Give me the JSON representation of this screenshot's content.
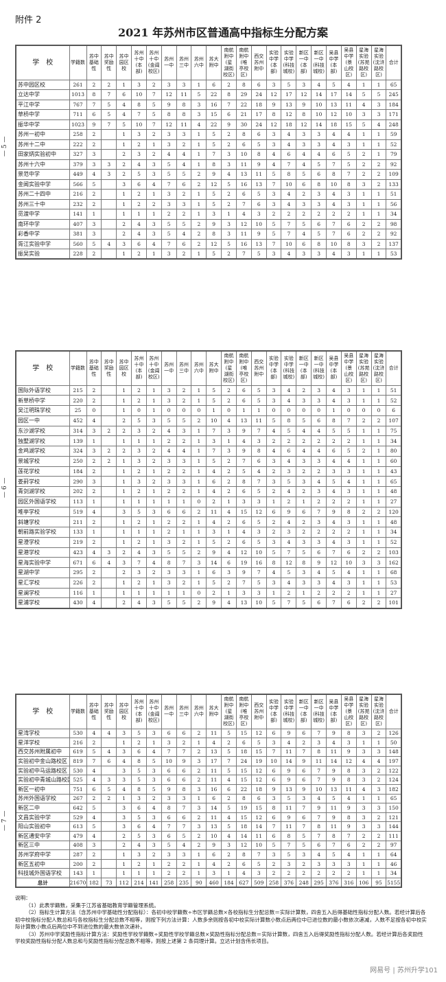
{
  "attachment_label": "附件 2",
  "title": "2021 年苏州市区普通高中指标生分配方案",
  "page_markers": [
    "— 5 —",
    "— 6 —",
    "— 7 —"
  ],
  "headers": [
    "学　校",
    "学籍数",
    "苏中\n基础\n性",
    "苏中\n奖励\n性",
    "苏中\n园区\n校",
    "苏州\n十中\n(本\n部)",
    "苏州\n十中\n(金阊\n校区)",
    "苏州\n一中",
    "苏州\n三中",
    "苏州\n六中",
    "苏大\n附中",
    "南航\n附中\n(星\n湖街\n校区)",
    "南航\n附中\n(唯\n亭校\n区)",
    "西交\n苏州\n附中",
    "实验\n中学\n(本\n部)",
    "实验\n中学\n(科技\n城校)",
    "新区\n一中\n(本\n部)",
    "新区\n一中\n(科技\n城校)",
    "吴县\n中学\n(本\n部)",
    "吴县\n中学\n(景\n山校\n区)",
    "星海\n实验\n(苏苑\n路校\n区)",
    "星海\n实验\n(沈浒\n路校\n区)",
    "合计"
  ],
  "tables": [
    [
      [
        "苏中园区校",
        "261",
        "2",
        "2",
        "1",
        "3",
        "2",
        "3",
        "3",
        "1",
        "6",
        "2",
        "8",
        "6",
        "3",
        "5",
        "3",
        "4",
        "5",
        "4",
        "1",
        "1",
        "65"
      ],
      [
        "立达中学",
        "1013",
        "8",
        "7",
        "6",
        "10",
        "7",
        "12",
        "11",
        "5",
        "22",
        "8",
        "29",
        "24",
        "12",
        "17",
        "12",
        "14",
        "17",
        "14",
        "5",
        "5",
        "245"
      ],
      [
        "平江中学",
        "767",
        "7",
        "5",
        "4",
        "8",
        "5",
        "9",
        "8",
        "3",
        "16",
        "7",
        "22",
        "18",
        "9",
        "13",
        "9",
        "10",
        "13",
        "11",
        "4",
        "3",
        "184"
      ],
      [
        "草桥中学",
        "711",
        "6",
        "5",
        "4",
        "7",
        "5",
        "8",
        "8",
        "3",
        "15",
        "6",
        "21",
        "17",
        "8",
        "12",
        "8",
        "10",
        "12",
        "10",
        "3",
        "3",
        "171"
      ],
      [
        "振华中学",
        "1023",
        "9",
        "7",
        "5",
        "10",
        "7",
        "12",
        "11",
        "4",
        "22",
        "9",
        "30",
        "24",
        "12",
        "18",
        "12",
        "14",
        "18",
        "15",
        "5",
        "4",
        "248"
      ],
      [
        "苏州一初中",
        "258",
        "2",
        "",
        "1",
        "3",
        "2",
        "3",
        "3",
        "1",
        "5",
        "2",
        "8",
        "6",
        "3",
        "4",
        "3",
        "3",
        "4",
        "4",
        "1",
        "1",
        "59"
      ],
      [
        "苏州十二中",
        "222",
        "2",
        "",
        "1",
        "2",
        "1",
        "3",
        "2",
        "1",
        "5",
        "2",
        "6",
        "5",
        "3",
        "4",
        "3",
        "3",
        "4",
        "3",
        "1",
        "1",
        "52"
      ],
      [
        "田家炳实验初中",
        "327",
        "3",
        "",
        "2",
        "3",
        "2",
        "4",
        "4",
        "1",
        "7",
        "3",
        "10",
        "8",
        "4",
        "6",
        "4",
        "4",
        "6",
        "5",
        "2",
        "1",
        "79"
      ],
      [
        "苏州十六中",
        "379",
        "3",
        "3",
        "2",
        "4",
        "3",
        "5",
        "4",
        "1",
        "8",
        "3",
        "11",
        "9",
        "4",
        "7",
        "4",
        "5",
        "7",
        "5",
        "2",
        "2",
        "92"
      ],
      [
        "景范中学",
        "449",
        "4",
        "3",
        "2",
        "5",
        "3",
        "5",
        "5",
        "2",
        "9",
        "4",
        "13",
        "11",
        "5",
        "8",
        "5",
        "6",
        "8",
        "7",
        "2",
        "2",
        "109"
      ],
      [
        "金阊实验中学",
        "566",
        "5",
        "",
        "3",
        "6",
        "4",
        "7",
        "6",
        "2",
        "12",
        "5",
        "16",
        "13",
        "7",
        "10",
        "6",
        "8",
        "10",
        "8",
        "3",
        "2",
        "133"
      ],
      [
        "苏州二十四中",
        "216",
        "2",
        "",
        "1",
        "2",
        "1",
        "3",
        "2",
        "1",
        "5",
        "2",
        "6",
        "5",
        "3",
        "4",
        "2",
        "3",
        "4",
        "3",
        "1",
        "1",
        "51"
      ],
      [
        "苏州三十中",
        "232",
        "2",
        "",
        "1",
        "2",
        "2",
        "3",
        "3",
        "1",
        "5",
        "2",
        "7",
        "6",
        "3",
        "4",
        "3",
        "3",
        "4",
        "3",
        "1",
        "1",
        "56"
      ],
      [
        "觅渡中学",
        "141",
        "1",
        "",
        "1",
        "1",
        "1",
        "2",
        "2",
        "1",
        "3",
        "1",
        "4",
        "3",
        "2",
        "2",
        "2",
        "2",
        "2",
        "2",
        "1",
        "1",
        "34"
      ],
      [
        "南环中学",
        "407",
        "3",
        "",
        "2",
        "4",
        "3",
        "5",
        "5",
        "2",
        "9",
        "3",
        "12",
        "10",
        "5",
        "7",
        "5",
        "6",
        "7",
        "6",
        "2",
        "2",
        "98"
      ],
      [
        "彩香中学",
        "381",
        "3",
        "",
        "2",
        "4",
        "3",
        "5",
        "4",
        "2",
        "8",
        "3",
        "11",
        "9",
        "5",
        "7",
        "4",
        "5",
        "7",
        "6",
        "2",
        "2",
        "92"
      ],
      [
        "胥江实验中学",
        "560",
        "5",
        "4",
        "3",
        "6",
        "4",
        "7",
        "6",
        "2",
        "12",
        "5",
        "16",
        "13",
        "7",
        "10",
        "6",
        "8",
        "10",
        "8",
        "3",
        "2",
        "137"
      ],
      [
        "振吴实验",
        "228",
        "2",
        "",
        "1",
        "2",
        "1",
        "3",
        "2",
        "1",
        "5",
        "2",
        "7",
        "5",
        "3",
        "4",
        "3",
        "3",
        "4",
        "3",
        "1",
        "1",
        "53"
      ]
    ],
    [
      [
        "国际外语学校",
        "215",
        "2",
        "",
        "1",
        "2",
        "1",
        "3",
        "2",
        "1",
        "5",
        "2",
        "6",
        "5",
        "3",
        "4",
        "2",
        "3",
        "4",
        "3",
        "1",
        "1",
        "51"
      ],
      [
        "新草桥中学",
        "220",
        "2",
        "",
        "1",
        "2",
        "1",
        "3",
        "2",
        "1",
        "5",
        "2",
        "6",
        "5",
        "3",
        "4",
        "3",
        "3",
        "4",
        "3",
        "1",
        "1",
        "52"
      ],
      [
        "吴江明珠学校",
        "25",
        "0",
        "",
        "1",
        "0",
        "1",
        "0",
        "0",
        "0",
        "1",
        "0",
        "1",
        "1",
        "0",
        "0",
        "0",
        "0",
        "1",
        "0",
        "0",
        "0",
        "6"
      ],
      [
        "园区一中",
        "452",
        "4",
        "",
        "2",
        "5",
        "3",
        "5",
        "5",
        "2",
        "10",
        "4",
        "13",
        "11",
        "5",
        "8",
        "5",
        "6",
        "8",
        "7",
        "2",
        "2",
        "107"
      ],
      [
        "东沙湖学校",
        "314",
        "3",
        "2",
        "2",
        "3",
        "2",
        "4",
        "3",
        "1",
        "7",
        "3",
        "9",
        "7",
        "4",
        "5",
        "4",
        "4",
        "5",
        "5",
        "1",
        "1",
        "75"
      ],
      [
        "独墅湖学校",
        "139",
        "1",
        "",
        "1",
        "1",
        "1",
        "2",
        "2",
        "1",
        "3",
        "1",
        "4",
        "3",
        "2",
        "2",
        "2",
        "2",
        "2",
        "2",
        "1",
        "1",
        "34"
      ],
      [
        "金鸡湖学校",
        "324",
        "3",
        "2",
        "2",
        "3",
        "2",
        "4",
        "4",
        "1",
        "7",
        "3",
        "9",
        "8",
        "4",
        "6",
        "4",
        "4",
        "6",
        "5",
        "2",
        "1",
        "80"
      ],
      [
        "景城学校",
        "250",
        "2",
        "2",
        "1",
        "3",
        "2",
        "3",
        "3",
        "1",
        "5",
        "2",
        "7",
        "6",
        "3",
        "4",
        "3",
        "3",
        "4",
        "4",
        "1",
        "1",
        "60"
      ],
      [
        "莲花学校",
        "184",
        "2",
        "",
        "1",
        "2",
        "1",
        "2",
        "2",
        "1",
        "4",
        "2",
        "5",
        "4",
        "2",
        "3",
        "2",
        "2",
        "3",
        "3",
        "1",
        "1",
        "43"
      ],
      [
        "娄葑学校",
        "290",
        "3",
        "",
        "1",
        "3",
        "2",
        "3",
        "3",
        "1",
        "6",
        "2",
        "8",
        "7",
        "3",
        "5",
        "3",
        "4",
        "5",
        "4",
        "1",
        "1",
        "65"
      ],
      [
        "青剑湖学校",
        "202",
        "2",
        "",
        "1",
        "2",
        "1",
        "2",
        "2",
        "1",
        "4",
        "2",
        "6",
        "5",
        "2",
        "4",
        "2",
        "3",
        "4",
        "3",
        "1",
        "1",
        "48"
      ],
      [
        "园区外国语学校",
        "113",
        "1",
        "",
        "1",
        "1",
        "1",
        "1",
        "1",
        "0",
        "2",
        "1",
        "3",
        "3",
        "1",
        "2",
        "1",
        "2",
        "2",
        "2",
        "1",
        "1",
        "27"
      ],
      [
        "唯亭学校",
        "519",
        "4",
        "",
        "3",
        "5",
        "3",
        "6",
        "6",
        "2",
        "11",
        "4",
        "15",
        "12",
        "6",
        "9",
        "6",
        "7",
        "9",
        "8",
        "2",
        "2",
        "120"
      ],
      [
        "斜塘学校",
        "211",
        "2",
        "",
        "1",
        "2",
        "1",
        "2",
        "2",
        "1",
        "4",
        "2",
        "6",
        "5",
        "2",
        "4",
        "2",
        "3",
        "4",
        "3",
        "1",
        "1",
        "48"
      ],
      [
        "朝前路实验学校",
        "133",
        "1",
        "",
        "1",
        "1",
        "1",
        "2",
        "1",
        "1",
        "3",
        "1",
        "4",
        "3",
        "2",
        "3",
        "2",
        "2",
        "2",
        "2",
        "1",
        "1",
        "34"
      ],
      [
        "星澄学校",
        "219",
        "2",
        "",
        "1",
        "2",
        "1",
        "3",
        "2",
        "1",
        "5",
        "2",
        "6",
        "5",
        "3",
        "4",
        "3",
        "3",
        "4",
        "3",
        "1",
        "1",
        "52"
      ],
      [
        "星港学校",
        "423",
        "4",
        "3",
        "2",
        "4",
        "3",
        "5",
        "5",
        "2",
        "9",
        "4",
        "12",
        "10",
        "5",
        "7",
        "5",
        "6",
        "7",
        "6",
        "2",
        "2",
        "103"
      ],
      [
        "星海实验中学",
        "671",
        "6",
        "4",
        "3",
        "7",
        "4",
        "8",
        "7",
        "3",
        "14",
        "6",
        "19",
        "16",
        "8",
        "12",
        "8",
        "9",
        "12",
        "10",
        "3",
        "3",
        "162"
      ],
      [
        "星湖中学",
        "295",
        "2",
        "",
        "2",
        "3",
        "2",
        "3",
        "3",
        "1",
        "6",
        "3",
        "9",
        "7",
        "4",
        "5",
        "3",
        "4",
        "5",
        "4",
        "1",
        "1",
        "68"
      ],
      [
        "星汇学校",
        "226",
        "2",
        "",
        "1",
        "2",
        "1",
        "3",
        "2",
        "1",
        "5",
        "2",
        "7",
        "5",
        "3",
        "4",
        "3",
        "3",
        "4",
        "3",
        "1",
        "1",
        "53"
      ],
      [
        "星澜学校",
        "116",
        "1",
        "",
        "1",
        "1",
        "1",
        "1",
        "1",
        "0",
        "2",
        "1",
        "3",
        "3",
        "1",
        "2",
        "1",
        "2",
        "2",
        "2",
        "1",
        "1",
        "27"
      ],
      [
        "星浦学校",
        "430",
        "4",
        "",
        "2",
        "4",
        "3",
        "5",
        "5",
        "2",
        "9",
        "4",
        "13",
        "10",
        "5",
        "7",
        "5",
        "6",
        "7",
        "6",
        "2",
        "2",
        "101"
      ]
    ],
    [
      [
        "星湾学校",
        "530",
        "4",
        "4",
        "3",
        "5",
        "3",
        "6",
        "6",
        "2",
        "11",
        "5",
        "15",
        "12",
        "6",
        "9",
        "6",
        "7",
        "9",
        "8",
        "3",
        "2",
        "126"
      ],
      [
        "星洋学校",
        "216",
        "2",
        "",
        "1",
        "2",
        "1",
        "3",
        "2",
        "1",
        "4",
        "2",
        "6",
        "5",
        "3",
        "4",
        "2",
        "3",
        "4",
        "3",
        "1",
        "1",
        "50"
      ],
      [
        "西交苏州附属初中",
        "619",
        "5",
        "4",
        "3",
        "6",
        "4",
        "7",
        "7",
        "2",
        "13",
        "5",
        "18",
        "15",
        "7",
        "11",
        "7",
        "8",
        "11",
        "9",
        "3",
        "3",
        "148"
      ],
      [
        "实验初中金山路校区",
        "819",
        "7",
        "6",
        "4",
        "8",
        "5",
        "10",
        "9",
        "3",
        "17",
        "7",
        "24",
        "19",
        "10",
        "14",
        "9",
        "11",
        "14",
        "12",
        "4",
        "4",
        "197"
      ],
      [
        "实验初中马运路校区",
        "530",
        "4",
        "",
        "3",
        "5",
        "3",
        "6",
        "6",
        "2",
        "11",
        "5",
        "15",
        "12",
        "6",
        "9",
        "6",
        "7",
        "9",
        "8",
        "3",
        "2",
        "122"
      ],
      [
        "实验初中青城山路校区",
        "525",
        "4",
        "3",
        "3",
        "5",
        "3",
        "6",
        "6",
        "2",
        "11",
        "4",
        "15",
        "12",
        "6",
        "9",
        "6",
        "7",
        "9",
        "8",
        "3",
        "2",
        "124"
      ],
      [
        "新区一初中",
        "751",
        "6",
        "5",
        "4",
        "8",
        "5",
        "9",
        "8",
        "3",
        "16",
        "6",
        "22",
        "18",
        "9",
        "13",
        "9",
        "10",
        "13",
        "11",
        "4",
        "3",
        "182"
      ],
      [
        "苏州外国语学校",
        "267",
        "2",
        "2",
        "1",
        "3",
        "2",
        "3",
        "3",
        "1",
        "6",
        "2",
        "8",
        "6",
        "3",
        "5",
        "3",
        "4",
        "5",
        "4",
        "1",
        "1",
        "65"
      ],
      [
        "新区二中",
        "642",
        "5",
        "",
        "3",
        "6",
        "4",
        "8",
        "7",
        "3",
        "14",
        "5",
        "19",
        "15",
        "8",
        "11",
        "7",
        "9",
        "11",
        "9",
        "3",
        "3",
        "150"
      ],
      [
        "文昌实验中学",
        "529",
        "4",
        "",
        "3",
        "5",
        "3",
        "6",
        "6",
        "2",
        "11",
        "4",
        "15",
        "12",
        "6",
        "9",
        "6",
        "7",
        "9",
        "8",
        "3",
        "2",
        "121"
      ],
      [
        "阳山实验初中",
        "613",
        "5",
        "",
        "3",
        "6",
        "4",
        "7",
        "7",
        "3",
        "13",
        "5",
        "18",
        "14",
        "7",
        "11",
        "7",
        "8",
        "11",
        "9",
        "3",
        "3",
        "144"
      ],
      [
        "新区通安中学",
        "479",
        "4",
        "",
        "2",
        "5",
        "3",
        "6",
        "5",
        "2",
        "10",
        "4",
        "14",
        "11",
        "6",
        "8",
        "5",
        "7",
        "8",
        "7",
        "2",
        "2",
        "111"
      ],
      [
        "新区三中",
        "408",
        "3",
        "",
        "2",
        "4",
        "3",
        "5",
        "4",
        "2",
        "9",
        "3",
        "12",
        "10",
        "5",
        "7",
        "5",
        "6",
        "7",
        "6",
        "2",
        "2",
        "97"
      ],
      [
        "苏州学府中学",
        "287",
        "2",
        "",
        "1",
        "3",
        "2",
        "3",
        "3",
        "1",
        "6",
        "2",
        "8",
        "7",
        "3",
        "5",
        "3",
        "4",
        "5",
        "4",
        "1",
        "1",
        "64"
      ],
      [
        "新区五初中",
        "200",
        "2",
        "",
        "1",
        "2",
        "1",
        "2",
        "2",
        "1",
        "4",
        "2",
        "6",
        "5",
        "2",
        "3",
        "2",
        "3",
        "3",
        "3",
        "1",
        "1",
        "46"
      ],
      [
        "科技城外国语学校",
        "143",
        "1",
        "",
        "1",
        "1",
        "1",
        "2",
        "2",
        "1",
        "3",
        "1",
        "4",
        "3",
        "2",
        "2",
        "2",
        "2",
        "2",
        "2",
        "1",
        "1",
        "34"
      ],
      [
        "总计",
        "21670",
        "182",
        "73",
        "112",
        "214",
        "141",
        "258",
        "235",
        "90",
        "460",
        "184",
        "627",
        "509",
        "258",
        "376",
        "248",
        "295",
        "376",
        "316",
        "106",
        "95",
        "5155"
      ]
    ]
  ],
  "notes": {
    "heading": "说明：",
    "items": [
      "（1）此表学籍数，采集于江苏省基础教育学籍管理系统。",
      "（2）指标生计算方法（含苏州中学基础性分配指标）：各初中校学籍数÷市区学籍总数×各校指标生分配总数＝实际计算数，四舍五入后得基础性指标分配人数。若经计算后各初中校指标分配人数总和与各校指标生分配总数不相等，则按下列方法计算：人数多余则按各初中校实际计算数小数点后两位中已进位数的最小数依次递减，人数不足按各初中校实际计算数小数点后两位中不到进位数的最大数依次递补。",
      "（3）苏州中学奖励性指标计算方法：奖励性学校学籍数÷奖励性学校学籍总数×奖励性指标分配总数＝实际计算数，四舍五入后得奖励性指标分配人数。若经计算后各奖励性学校奖励性指标分配人数总和与奖励性指标分配总数不相等，则按上述第 2 条同理计算。立达计划含伟长项目。"
    ]
  },
  "footer": "网易号 | 苏州升学101"
}
